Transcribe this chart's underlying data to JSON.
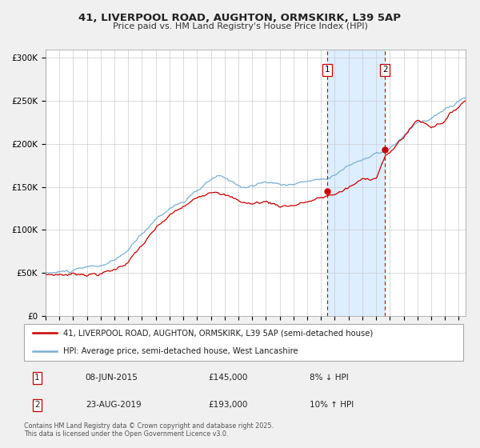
{
  "title": "41, LIVERPOOL ROAD, AUGHTON, ORMSKIRK, L39 5AP",
  "subtitle": "Price paid vs. HM Land Registry's House Price Index (HPI)",
  "red_label": "41, LIVERPOOL ROAD, AUGHTON, ORMSKIRK, L39 5AP (semi-detached house)",
  "blue_label": "HPI: Average price, semi-detached house, West Lancashire",
  "xmin": 1995,
  "xmax": 2025.5,
  "ymin": 0,
  "ymax": 310000,
  "yticks": [
    0,
    50000,
    100000,
    150000,
    200000,
    250000,
    300000
  ],
  "ytick_labels": [
    "£0",
    "£50K",
    "£100K",
    "£150K",
    "£200K",
    "£250K",
    "£300K"
  ],
  "marker1_x": 2015.44,
  "marker1_y": 145000,
  "marker2_x": 2019.64,
  "marker2_y": 193000,
  "vline1_x": 2015.44,
  "vline2_x": 2019.64,
  "annotation1_label": "1",
  "annotation2_label": "2",
  "annotation1_date": "08-JUN-2015",
  "annotation1_price": "£145,000",
  "annotation1_hpi": "8% ↓ HPI",
  "annotation2_date": "23-AUG-2019",
  "annotation2_price": "£193,000",
  "annotation2_hpi": "10% ↑ HPI",
  "footer": "Contains HM Land Registry data © Crown copyright and database right 2025.\nThis data is licensed under the Open Government Licence v3.0.",
  "red_color": "#cc0000",
  "blue_color": "#7ab0d4",
  "shading_color": "#ddeeff",
  "vline_color": "#cc0000",
  "background_color": "#f0f0f0",
  "plot_bg_color": "#ffffff"
}
